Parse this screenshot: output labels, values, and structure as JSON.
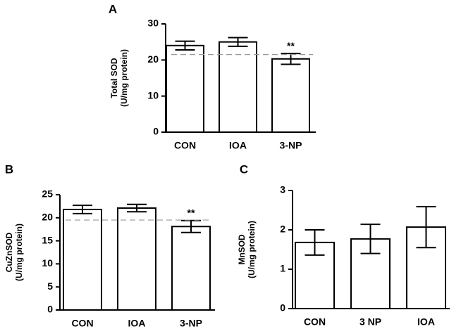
{
  "chart_data": [
    {
      "type": "bar",
      "panel": "A",
      "ylabel": [
        "Total SOD",
        "(U/mg protein)"
      ],
      "categories": [
        "CON",
        "IOA",
        "3-NP"
      ],
      "values": [
        24.0,
        25.0,
        20.3
      ],
      "errors": [
        1.2,
        1.2,
        1.5
      ],
      "color": "#ffffff",
      "ylim": [
        0,
        30
      ],
      "yticks": [
        0,
        10,
        20,
        30
      ],
      "reference_line": 21.5,
      "annotations": [
        {
          "category": "3-NP",
          "text": "**"
        }
      ]
    },
    {
      "type": "bar",
      "panel": "B",
      "ylabel": [
        "CuZnSOD",
        "(U/mg protein)"
      ],
      "categories": [
        "CON",
        "IOA",
        "3-NP"
      ],
      "values": [
        21.8,
        22.1,
        18.1
      ],
      "errors": [
        0.9,
        0.8,
        1.3
      ],
      "color": "#ffffff",
      "ylim": [
        0,
        25
      ],
      "yticks": [
        0,
        5,
        10,
        15,
        20,
        25
      ],
      "reference_line": 19.5,
      "annotations": [
        {
          "category": "3-NP",
          "text": "**"
        }
      ]
    },
    {
      "type": "bar",
      "panel": "C",
      "ylabel": [
        "MnSOD",
        "(U/mg protein)"
      ],
      "categories": [
        "CON",
        "3 NP",
        "IOA"
      ],
      "values": [
        1.68,
        1.77,
        2.07
      ],
      "errors": [
        0.32,
        0.37,
        0.52
      ],
      "color": "#ffffff",
      "ylim": [
        0,
        3
      ],
      "yticks": [
        0,
        1,
        2,
        3
      ]
    }
  ]
}
